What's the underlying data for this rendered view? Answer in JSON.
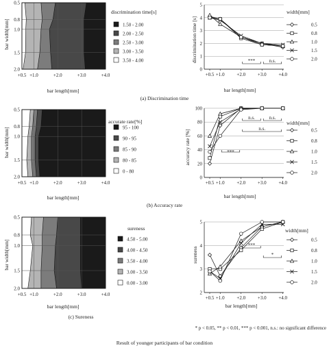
{
  "figure_title": "Result of younger participants of bar condition",
  "footnote": "* p < 0.05,  ** p < 0.01, *** p < 0.001, n.s.: no significant difference",
  "colors": {
    "fill_1": "#1a1a1a",
    "fill_2": "#484848",
    "fill_3": "#7c7c7c",
    "fill_4": "#b4b4b4",
    "fill_5": "#ffffff",
    "ink": "#222222"
  },
  "panels": [
    {
      "caption": "(a) Discrimination time",
      "contour": {
        "ylabel": "bar width[mm]",
        "xlabel": "bar length[mm]",
        "xticks": [
          "+0.5",
          "+1.0",
          "+2.0",
          "+3.0",
          "+4.0"
        ],
        "yticks": [
          "0.5",
          "0.8",
          "1.0",
          "1.5",
          "2.0"
        ],
        "legend_title": "discrimination time[s]",
        "legend": [
          "1.50 - 2.00",
          "2.00 - 2.50",
          "2.50 - 3.00",
          "3.00 - 3.50",
          "3.50 - 4.00"
        ]
      },
      "line": {
        "ylabel": "discrimination time [s]",
        "xlabel": "bar length[mm]",
        "xticks": [
          "+0.5",
          "+1.0",
          "+2.0",
          "+3.0",
          "+4.0"
        ],
        "yticks": [
          "0",
          "1",
          "2",
          "3",
          "4",
          "5"
        ],
        "legend_title": "width[mm]",
        "series_names": [
          "0.5",
          "0.8",
          "1.0",
          "1.5",
          "2.0"
        ],
        "annotations": [
          "***",
          "n.s."
        ]
      }
    },
    {
      "caption": "(b) Accuracy rate",
      "contour": {
        "ylabel": "bar width[mm]",
        "xlabel": "bar length[mm]",
        "xticks": [
          "+0.5",
          "+1.0",
          "+2.0",
          "+3.0",
          "+4.0"
        ],
        "yticks": [
          "0.5",
          "0.8",
          "1.0",
          "1.5",
          "2.0"
        ],
        "legend_title": "accurate rate[%]",
        "legend": [
          "95 - 100",
          "90 - 95",
          "85 - 90",
          "80 - 85",
          "0 - 80"
        ]
      },
      "line": {
        "ylabel": "accuracy rate [%]",
        "xlabel": "bar length[mm]",
        "xticks": [
          "+0.5",
          "+1.0",
          "+2.0",
          "+3.0",
          "+4.0"
        ],
        "yticks": [
          "0",
          "20",
          "40",
          "60",
          "80",
          "100"
        ],
        "legend_title": "width[mm]",
        "series_names": [
          "0.5",
          "0.8",
          "1.0",
          "1.5",
          "2.0"
        ],
        "annotations": [
          "n.s.",
          "n.s.",
          "n.s.",
          "***"
        ]
      }
    },
    {
      "caption": "(c) Sureness",
      "contour": {
        "ylabel": "bar width[mm]",
        "xlabel": "bar length[mm]",
        "xticks": [
          "+0.5",
          "+1.0",
          "+2.0",
          "+3.0",
          "+4.0"
        ],
        "yticks": [
          "0.5",
          "0.8",
          "1.0",
          "1.5",
          "2.0"
        ],
        "legend_title": "sureness",
        "legend": [
          "4.50 - 5.00",
          "4.00 - 4.50",
          "3.50 - 4.00",
          "3.00 - 3.50",
          "0.00 - 3.00"
        ]
      },
      "line": {
        "ylabel": "sureness",
        "xlabel": "bar length[mm]",
        "xticks": [
          "+0.5",
          "+1.0",
          "+2.0",
          "+3.0",
          "+4.0"
        ],
        "yticks": [
          "2",
          "3",
          "4",
          "5"
        ],
        "legend_title": "width[mm]",
        "series_names": [
          "0.5",
          "0.8",
          "1.0",
          "1.5",
          "2.0"
        ],
        "annotations": [
          "*",
          "***"
        ]
      }
    }
  ],
  "chart_data": [
    {
      "type": "heatmap",
      "x": [
        "+0.5",
        "+1.0",
        "+2.0",
        "+3.0",
        "+4.0"
      ],
      "y": [
        "0.5",
        "0.8",
        "1.0",
        "1.5",
        "2.0"
      ],
      "xlabel": "bar length[mm]",
      "ylabel": "bar width[mm]",
      "legend_title": "discrimination time[s]",
      "levels": [
        "1.50 - 2.00",
        "2.00 - 2.50",
        "2.50 - 3.00",
        "3.00 - 3.50",
        "3.50 - 4.00"
      ],
      "level_boundaries_x": {
        "comment_free_rows_by_width": [
          0.5,
          0.8,
          1.0,
          1.5,
          2.0
        ],
        "b_3_50": [
          0.62,
          0.68,
          0.66,
          0.65,
          0.55
        ],
        "b_3_00": [
          1.3,
          1.35,
          1.3,
          1.25,
          1.15
        ],
        "b_2_50": [
          1.9,
          1.8,
          1.65,
          1.7,
          1.75
        ],
        "b_2_00": [
          3.2,
          3.1,
          3.1,
          3.1,
          3.15
        ]
      }
    },
    {
      "type": "line",
      "x": [
        0.5,
        1.0,
        2.0,
        3.0,
        4.0
      ],
      "xlabel": "bar length[mm]",
      "ylabel": "discrimination time [s]",
      "ylim": [
        0,
        5
      ],
      "legend_title": "width[mm]",
      "series": [
        {
          "name": "0.5",
          "values": [
            4.1,
            3.9,
            2.5,
            2.0,
            1.7
          ]
        },
        {
          "name": "0.8",
          "values": [
            4.0,
            3.9,
            2.4,
            1.9,
            1.8
          ]
        },
        {
          "name": "1.0",
          "values": [
            4.2,
            3.5,
            2.5,
            2.0,
            1.8
          ]
        },
        {
          "name": "1.5",
          "values": [
            4.0,
            3.8,
            2.6,
            2.0,
            1.9
          ]
        },
        {
          "name": "2.0",
          "values": [
            4.0,
            3.9,
            2.5,
            1.9,
            1.8
          ]
        }
      ],
      "annotations": [
        {
          "text": "***",
          "x_from": 2.0,
          "x_to": 3.0
        },
        {
          "text": "n.s.",
          "x_from": 3.0,
          "x_to": 4.0
        }
      ]
    },
    {
      "type": "heatmap",
      "x": [
        "+0.5",
        "+1.0",
        "+2.0",
        "+3.0",
        "+4.0"
      ],
      "y": [
        "0.5",
        "0.8",
        "1.0",
        "1.5",
        "2.0"
      ],
      "xlabel": "bar length[mm]",
      "ylabel": "bar width[mm]",
      "legend_title": "accurate rate[%]",
      "levels": [
        "95 - 100",
        "90 - 95",
        "85 - 90",
        "80 - 85",
        "0 - 80"
      ],
      "level_boundaries_x": {
        "comment_free_rows_by_width": [
          0.5,
          0.8,
          1.0,
          1.5,
          2.0
        ],
        "b_80": [
          0.85,
          0.8,
          0.75,
          0.7,
          0.75
        ],
        "b_85": [
          1.0,
          0.95,
          0.9,
          0.9,
          0.95
        ],
        "b_90": [
          1.15,
          1.1,
          1.05,
          1.05,
          1.1
        ],
        "b_95": [
          1.35,
          1.3,
          1.2,
          1.2,
          1.25
        ]
      }
    },
    {
      "type": "line",
      "x": [
        0.5,
        1.0,
        2.0,
        3.0,
        4.0
      ],
      "xlabel": "bar length[mm]",
      "ylabel": "accuracy rate [%]",
      "ylim": [
        0,
        100
      ],
      "legend_title": "width[mm]",
      "series": [
        {
          "name": "0.5",
          "values": [
            20,
            75,
            100,
            100,
            100
          ]
        },
        {
          "name": "0.8",
          "values": [
            28,
            88,
            100,
            100,
            100
          ]
        },
        {
          "name": "1.0",
          "values": [
            60,
            92,
            100,
            100,
            100
          ]
        },
        {
          "name": "1.5",
          "values": [
            45,
            80,
            99,
            100,
            100
          ]
        },
        {
          "name": "2.0",
          "values": [
            37,
            60,
            98,
            100,
            100
          ]
        }
      ],
      "annotations": [
        {
          "text": "n.s.",
          "x_from": 2.0,
          "x_to": 3.0
        },
        {
          "text": "n.s.",
          "x_from": 3.0,
          "x_to": 4.0
        },
        {
          "text": "n.s.",
          "x_from": 2.0,
          "x_to": 4.0
        },
        {
          "text": "***",
          "x_from": 1.0,
          "x_to": 2.0
        }
      ]
    },
    {
      "type": "heatmap",
      "x": [
        "+0.5",
        "+1.0",
        "+2.0",
        "+3.0",
        "+4.0"
      ],
      "y": [
        "0.5",
        "0.8",
        "1.0",
        "1.5",
        "2.0"
      ],
      "xlabel": "bar length[mm]",
      "ylabel": "bar width[mm]",
      "legend_title": "sureness",
      "levels": [
        "4.50 - 5.00",
        "4.00 - 4.50",
        "3.50 - 4.00",
        "3.00 - 3.50",
        "0.00 - 3.00"
      ],
      "level_boundaries_x": {
        "comment_free_rows_by_width": [
          0.5,
          0.8,
          1.0,
          1.5,
          2.0
        ],
        "b_3_00": [
          0.9,
          0.85,
          0.95,
          0.85,
          0.75
        ],
        "b_3_50": [
          1.4,
          1.35,
          1.35,
          1.3,
          1.3
        ],
        "b_4_00": [
          2.0,
          1.95,
          1.9,
          1.85,
          1.95
        ],
        "b_4_50": [
          2.95,
          2.95,
          2.95,
          2.95,
          3.0
        ]
      }
    },
    {
      "type": "line",
      "x": [
        0.5,
        1.0,
        2.0,
        3.0,
        4.0
      ],
      "xlabel": "bar length[mm]",
      "ylabel": "sureness",
      "ylim": [
        2,
        5
      ],
      "legend_title": "width[mm]",
      "series": [
        {
          "name": "0.5",
          "values": [
            3.6,
            2.7,
            3.9,
            4.8,
            5.0
          ]
        },
        {
          "name": "0.8",
          "values": [
            3.0,
            3.0,
            3.8,
            4.7,
            5.0
          ]
        },
        {
          "name": "1.0",
          "values": [
            2.8,
            3.1,
            4.2,
            4.8,
            5.0
          ]
        },
        {
          "name": "1.5",
          "values": [
            2.9,
            2.6,
            4.1,
            4.9,
            4.9
          ]
        },
        {
          "name": "2.0",
          "values": [
            2.9,
            2.5,
            4.5,
            5.0,
            5.0
          ]
        }
      ],
      "annotations": [
        {
          "text": "*",
          "x_from": 3.0,
          "x_to": 4.0
        },
        {
          "text": "***",
          "x_from": 2.0,
          "x_to": 3.0
        }
      ]
    }
  ]
}
